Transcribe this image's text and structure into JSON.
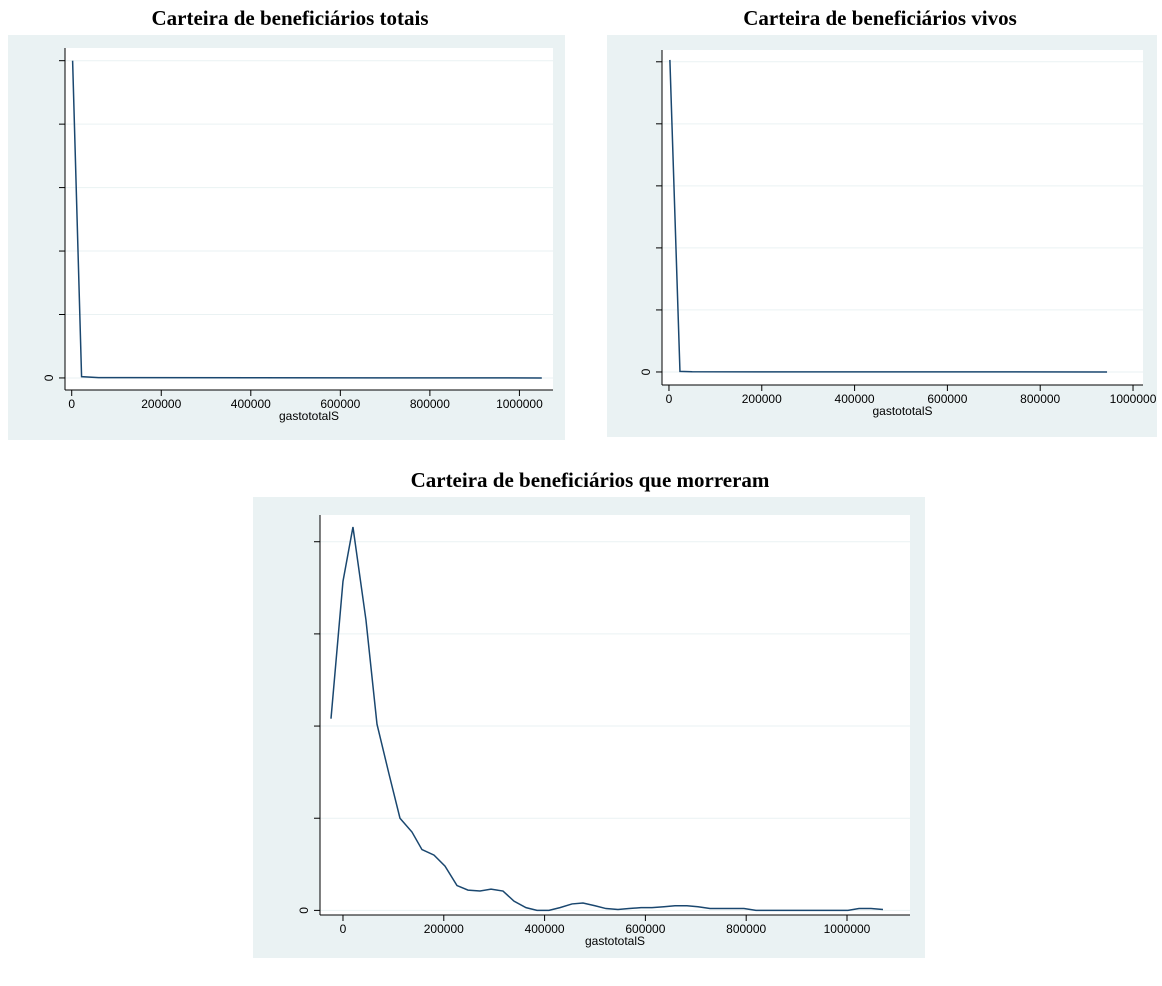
{
  "chart_data": [
    {
      "type": "line",
      "title": "Carteira de beneficiários totais",
      "xlabel": "gastototalS",
      "color": "#1a476f",
      "grid": true,
      "x": [
        2000,
        22000,
        60000,
        1050000
      ],
      "values": [
        5.0,
        0.02,
        0.005,
        0
      ],
      "xlim": [
        -15000,
        1075000
      ],
      "ylim": [
        -0.19,
        5.2
      ],
      "xticks": [
        0,
        200000,
        400000,
        600000,
        800000,
        1000000
      ],
      "yticks": [
        0
      ],
      "yminorticks": [
        1,
        2,
        3,
        4,
        5
      ]
    },
    {
      "type": "line",
      "title": "Carteira de beneficiários vivos",
      "xlabel": "gastototalS",
      "color": "#1a476f",
      "grid": true,
      "x": [
        2000,
        23700,
        50000,
        944000
      ],
      "values": [
        5.03,
        0.01,
        0.003,
        0
      ],
      "xlim": [
        -15000,
        1021500
      ],
      "ylim": [
        -0.21,
        5.19
      ],
      "xticks": [
        0,
        200000,
        400000,
        600000,
        800000,
        1000000
      ],
      "yticks": [
        0
      ],
      "yminorticks": [
        1,
        2,
        3,
        4,
        5
      ]
    },
    {
      "type": "line",
      "title": "Carteira de beneficiários que morreram",
      "xlabel": "gastototalS",
      "color": "#1a476f",
      "grid": true,
      "x": [
        -23800,
        0,
        19800,
        45600,
        67500,
        91300,
        113100,
        136900,
        156700,
        180600,
        202400,
        226200,
        248000,
        271800,
        293700,
        317500,
        339300,
        363100,
        384900,
        408700,
        430600,
        454400,
        476200,
        500000,
        521800,
        545600,
        567500,
        591300,
        613100,
        636900,
        658700,
        682500,
        704400,
        728200,
        750000,
        773800,
        795600,
        819400,
        1002000,
        1023800,
        1047600,
        1071400
      ],
      "values": [
        2.08,
        3.57,
        4.16,
        3.15,
        2.02,
        1.48,
        1.0,
        0.85,
        0.66,
        0.6,
        0.48,
        0.27,
        0.22,
        0.21,
        0.23,
        0.21,
        0.1,
        0.03,
        0,
        0,
        0.03,
        0.07,
        0.08,
        0.05,
        0.02,
        0.01,
        0.02,
        0.03,
        0.03,
        0.04,
        0.05,
        0.05,
        0.04,
        0.02,
        0.02,
        0.02,
        0.02,
        0,
        0,
        0.02,
        0.02,
        0.01
      ],
      "xlim": [
        -45600,
        1125000
      ],
      "ylim": [
        -0.05,
        4.29
      ],
      "xticks": [
        0,
        200000,
        400000,
        600000,
        800000,
        1000000
      ],
      "yticks": [
        0
      ],
      "yminorticks": [
        1,
        2,
        3,
        4
      ]
    }
  ]
}
